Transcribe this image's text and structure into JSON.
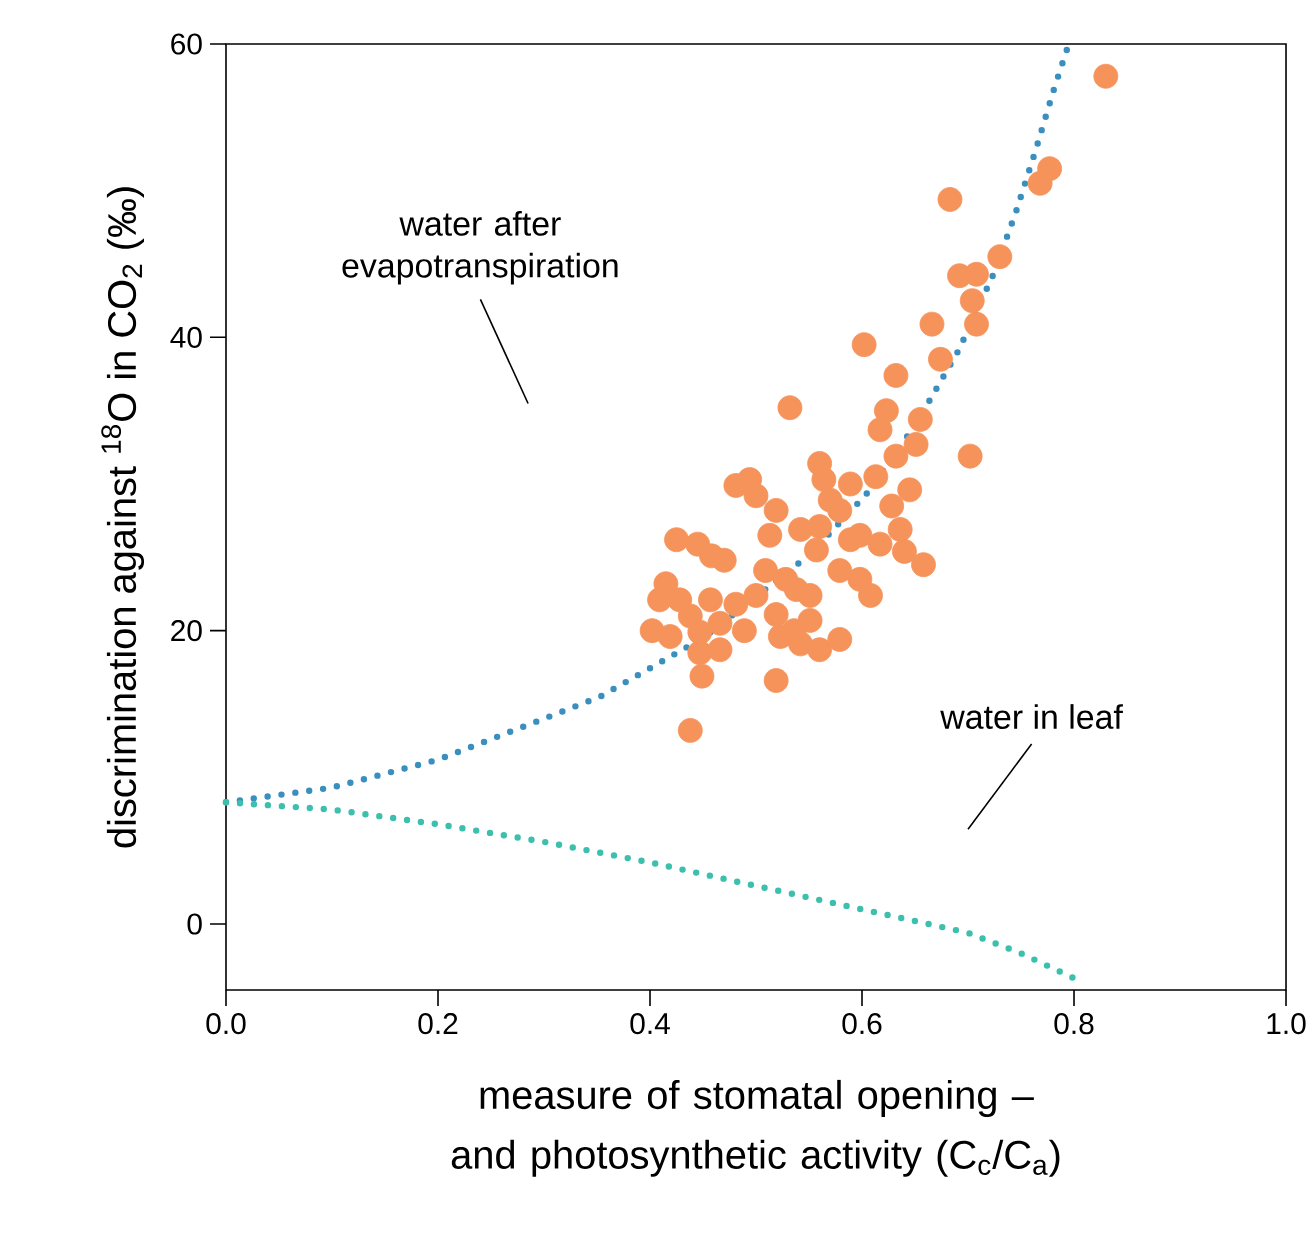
{
  "chart_data": {
    "type": "scatter",
    "xlabel": "measure of stomatal opening – and photosynthetic activity (C$_{c}$/C$_{a}$)",
    "ylabel": "discrimination against $^{18}$O in CO$_{2}$ (‰)",
    "xlim": [
      0,
      1
    ],
    "ylim": [
      -4.5,
      60
    ],
    "xticks": [
      {
        "value": 0,
        "label": "0.0"
      },
      {
        "value": 0.2,
        "label": "0.2"
      },
      {
        "value": 0.4,
        "label": "0.4"
      },
      {
        "value": 0.6,
        "label": "0.6"
      },
      {
        "value": 0.8,
        "label": "0.8"
      },
      {
        "value": 1,
        "label": "1.0"
      }
    ],
    "yticks": [
      0,
      20,
      40,
      60
    ],
    "series": [
      {
        "type": "line",
        "color": "#3a8fbf",
        "marker": "none",
        "line_style": "dotted",
        "x": [
          0,
          0.1,
          0.2,
          0.3,
          0.353,
          0.45,
          0.551,
          0.604,
          0.651,
          0.691,
          0.724,
          0.745,
          0.764,
          0.781,
          0.795
        ],
        "values": [
          8.3,
          9.3,
          11.2,
          14,
          15.5,
          19.5,
          25.2,
          29.3,
          34.1,
          39.1,
          44.3,
          48.5,
          52.8,
          56.9,
          60
        ]
      },
      {
        "type": "line",
        "color": "#3dbfae",
        "marker": "none",
        "line_style": "dotted",
        "x": [
          0,
          0.1,
          0.2,
          0.3,
          0.4,
          0.5,
          0.6,
          0.7,
          0.75,
          0.8
        ],
        "values": [
          8.3,
          7.8,
          6.8,
          5.6,
          4.2,
          2.6,
          1.0,
          -0.6,
          -2.0,
          -3.7
        ]
      },
      {
        "color": "#f5935a",
        "marker": "circle",
        "x": [
          0.438,
          0.449,
          0.447,
          0.425,
          0.445,
          0.458,
          0.415,
          0.409,
          0.402,
          0.428,
          0.438,
          0.457,
          0.466,
          0.419,
          0.447,
          0.481,
          0.5,
          0.481,
          0.5,
          0.519,
          0.513,
          0.509,
          0.528,
          0.519,
          0.538,
          0.536,
          0.551,
          0.523,
          0.542,
          0.56,
          0.519,
          0.532,
          0.542,
          0.56,
          0.557,
          0.564,
          0.56,
          0.57,
          0.579,
          0.589,
          0.579,
          0.598,
          0.608,
          0.589,
          0.598,
          0.602,
          0.613,
          0.617,
          0.623,
          0.632,
          0.628,
          0.636,
          0.645,
          0.651,
          0.655,
          0.632,
          0.64,
          0.666,
          0.658,
          0.674,
          0.683,
          0.692,
          0.708,
          0.704,
          0.708,
          0.702,
          0.73,
          0.768,
          0.777,
          0.83,
          0.466,
          0.489,
          0.579,
          0.551,
          0.47,
          0.494,
          0.617
        ],
        "values": [
          13.2,
          16.9,
          18.5,
          26.2,
          25.9,
          25.1,
          23.2,
          22.1,
          20,
          22.1,
          21,
          22.1,
          20.5,
          19.6,
          19.9,
          21.8,
          22.4,
          29.9,
          29.2,
          28.2,
          26.5,
          24.1,
          23.5,
          21.1,
          22.8,
          20,
          20.7,
          19.6,
          19.1,
          18.7,
          16.6,
          35.2,
          26.9,
          27.1,
          25.5,
          30.3,
          31.4,
          28.9,
          28.2,
          26.2,
          24.1,
          23.5,
          22.4,
          30,
          26.5,
          39.5,
          30.5,
          33.7,
          35,
          31.9,
          28.5,
          26.9,
          29.6,
          32.7,
          34.4,
          37.4,
          25.4,
          40.9,
          24.5,
          38.5,
          49.4,
          44.2,
          44.3,
          42.5,
          40.9,
          31.9,
          45.5,
          50.5,
          51.5,
          57.8,
          18.7,
          20,
          19.4,
          22.4,
          24.8,
          30.3,
          25.9
        ]
      }
    ],
    "annotations": [
      "water after evapotranspiration",
      "water in leaf"
    ]
  }
}
